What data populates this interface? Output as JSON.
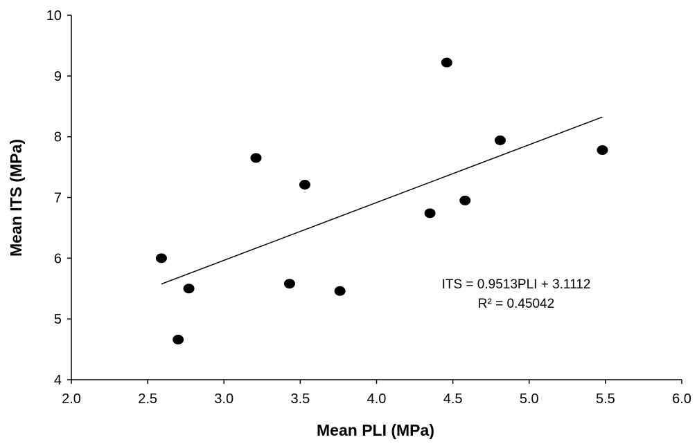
{
  "chart_data": {
    "type": "scatter",
    "title": "",
    "xlabel": "Mean PLI (MPa)",
    "ylabel": "Mean ITS (MPa)",
    "xlim": [
      2.0,
      6.0
    ],
    "ylim": [
      4,
      10
    ],
    "x_ticks": [
      "2.0",
      "2.5",
      "3.0",
      "3.5",
      "4.0",
      "4.5",
      "5.0",
      "5.5",
      "6.0"
    ],
    "y_ticks": [
      "4",
      "5",
      "6",
      "7",
      "8",
      "9",
      "10"
    ],
    "grid": false,
    "legend": "none",
    "series": [
      {
        "color": "#000000",
        "points": [
          {
            "x": 2.59,
            "y": 6.0
          },
          {
            "x": 2.7,
            "y": 4.66
          },
          {
            "x": 2.77,
            "y": 5.5
          },
          {
            "x": 3.21,
            "y": 7.65
          },
          {
            "x": 3.43,
            "y": 5.58
          },
          {
            "x": 3.53,
            "y": 7.21
          },
          {
            "x": 3.76,
            "y": 5.46
          },
          {
            "x": 4.35,
            "y": 6.74
          },
          {
            "x": 4.46,
            "y": 9.22
          },
          {
            "x": 4.58,
            "y": 6.95
          },
          {
            "x": 4.81,
            "y": 7.94
          },
          {
            "x": 5.48,
            "y": 7.78
          }
        ]
      }
    ],
    "trendline": {
      "slope": 0.9513,
      "intercept": 3.1112,
      "x_range": [
        2.59,
        5.48
      ],
      "color": "#000000"
    },
    "annotations": {
      "equation": "ITS = 0.9513PLI + 3.1112",
      "r_squared": "R² = 0.45042"
    }
  }
}
